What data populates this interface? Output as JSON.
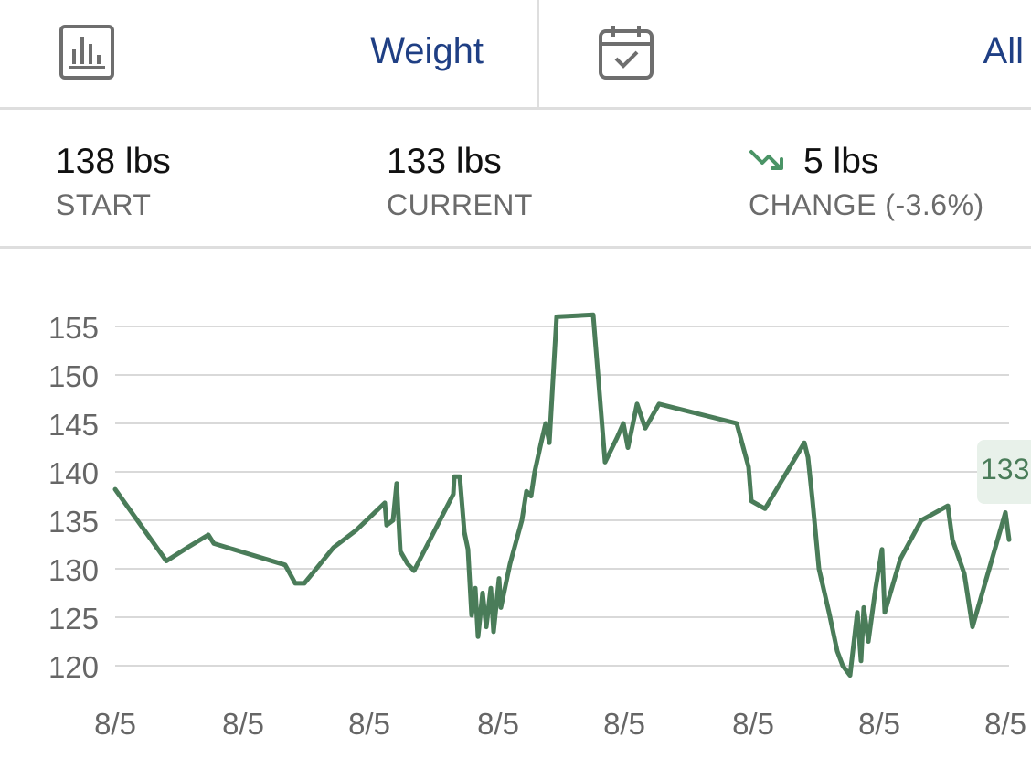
{
  "header": {
    "metric_label": "Weight",
    "range_label": "All",
    "metric_icon": "bar-chart-icon",
    "range_icon": "calendar-check-icon"
  },
  "stats": {
    "start_value": "138 lbs",
    "start_label": "START",
    "current_value": "133 lbs",
    "current_label": "CURRENT",
    "change_value": "5 lbs",
    "change_label": "CHANGE (-3.6%)",
    "change_icon": "trending-down-icon"
  },
  "colors": {
    "accent": "#1f3f84",
    "line": "#4a7c59",
    "trend": "#4a9466",
    "grid": "#d9d9d9",
    "tooltip_bg": "#e8f1ea"
  },
  "chart_data": {
    "type": "line",
    "title": "",
    "xlabel": "",
    "ylabel": "",
    "ylim": [
      118,
      157
    ],
    "yticks": [
      120,
      125,
      130,
      135,
      140,
      145,
      150,
      155
    ],
    "xtick_labels": [
      "8/5",
      "8/5",
      "8/5",
      "8/5",
      "8/5",
      "8/5",
      "8/5",
      "8/5"
    ],
    "grid": true,
    "tooltip_value": "133",
    "series": [
      {
        "values": [
          138.2,
          130.8,
          132.3,
          133.5,
          132.6,
          130.4,
          128.5,
          128.5,
          132.2,
          134.0,
          136.8,
          134.5,
          135.0,
          138.8,
          131.8,
          130.5,
          129.8,
          137.7,
          139.5,
          139.5,
          133.8,
          132.0,
          125.2,
          128.0,
          123.0,
          127.5,
          124.0,
          128.0,
          123.5,
          129.0,
          126.0,
          130.5,
          135.0,
          138.0,
          137.5,
          140.0,
          143.0,
          145.0,
          143.0,
          156.0,
          156.2,
          141.0,
          143.5,
          145.0,
          142.5,
          147.0,
          144.5,
          147.0,
          145.0,
          140.5,
          137.0,
          136.2,
          143.0,
          141.5,
          137.0,
          130.0,
          125.5,
          121.5,
          120.0,
          119.0,
          125.5,
          120.5,
          126.0,
          122.5,
          128.0,
          132.0,
          125.5,
          131.0,
          135.0,
          136.5,
          133.0,
          129.5,
          124.0,
          135.8,
          133.0
        ]
      }
    ]
  }
}
